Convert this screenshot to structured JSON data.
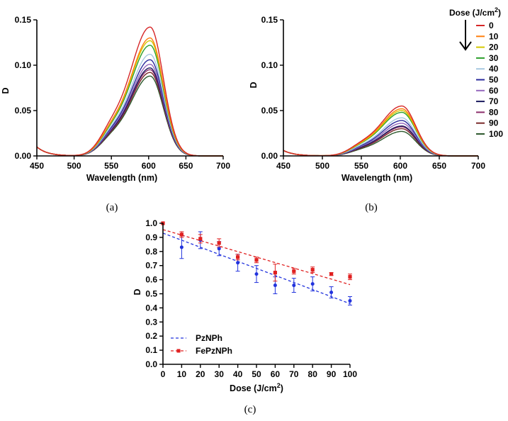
{
  "figure": {
    "panel_labels": [
      "(a)",
      "(b)",
      "(c)"
    ]
  },
  "chart_data": [
    {
      "panel": "a",
      "type": "line",
      "xlabel": "Wavelength (nm)",
      "ylabel": "D",
      "xlim": [
        450,
        700
      ],
      "ylim": [
        0,
        0.15
      ],
      "xticks": [
        450,
        500,
        550,
        600,
        650,
        700
      ],
      "xtick_labels": [
        "450",
        "500",
        "550",
        "600",
        "650",
        "700"
      ],
      "yticks": [
        0,
        0.05,
        0.1,
        0.15
      ],
      "ytick_labels": [
        "0.00",
        "0.05",
        "0.10",
        "0.15"
      ],
      "peak_wavelength": 602,
      "baseline_at_450": 0.01,
      "series": [
        {
          "name": "0",
          "color": "#d62728",
          "peak": 0.142
        },
        {
          "name": "10",
          "color": "#ff7f0e",
          "peak": 0.13
        },
        {
          "name": "20",
          "color": "#d4c800",
          "peak": 0.127
        },
        {
          "name": "30",
          "color": "#2ca02c",
          "peak": 0.122
        },
        {
          "name": "40",
          "color": "#a6c8e0",
          "peak": 0.112
        },
        {
          "name": "50",
          "color": "#2a2a9c",
          "peak": 0.106
        },
        {
          "name": "60",
          "color": "#9467bd",
          "peak": 0.101
        },
        {
          "name": "70",
          "color": "#1a1a5e",
          "peak": 0.097
        },
        {
          "name": "80",
          "color": "#8c2d6b",
          "peak": 0.095
        },
        {
          "name": "90",
          "color": "#7a2a2a",
          "peak": 0.092
        },
        {
          "name": "100",
          "color": "#2e5a2e",
          "peak": 0.088
        }
      ]
    },
    {
      "panel": "b",
      "type": "line",
      "xlabel": "Wavelength (nm)",
      "ylabel": "D",
      "xlim": [
        450,
        700
      ],
      "ylim": [
        0,
        0.15
      ],
      "xticks": [
        450,
        500,
        550,
        600,
        650,
        700
      ],
      "xtick_labels": [
        "450",
        "500",
        "550",
        "600",
        "650",
        "700"
      ],
      "yticks": [
        0,
        0.05,
        0.1,
        0.15
      ],
      "ytick_labels": [
        "0.00",
        "0.05",
        "0.10",
        "0.15"
      ],
      "peak_wavelength": 602,
      "baseline_at_450": 0.006,
      "series": [
        {
          "name": "0",
          "color": "#d62728",
          "peak": 0.055
        },
        {
          "name": "10",
          "color": "#ff7f0e",
          "peak": 0.052
        },
        {
          "name": "20",
          "color": "#d4c800",
          "peak": 0.05
        },
        {
          "name": "30",
          "color": "#2ca02c",
          "peak": 0.048
        },
        {
          "name": "40",
          "color": "#a6c8e0",
          "peak": 0.042
        },
        {
          "name": "50",
          "color": "#2a2a9c",
          "peak": 0.039
        },
        {
          "name": "60",
          "color": "#9467bd",
          "peak": 0.036
        },
        {
          "name": "70",
          "color": "#1a1a5e",
          "peak": 0.033
        },
        {
          "name": "80",
          "color": "#8c2d6b",
          "peak": 0.032
        },
        {
          "name": "90",
          "color": "#7a2a2a",
          "peak": 0.03
        },
        {
          "name": "100",
          "color": "#2e5a2e",
          "peak": 0.027
        }
      ],
      "legend": {
        "title_prefix": "Dose (J/cm",
        "title_sup": "2",
        "title_suffix": ")",
        "placement": "top-right",
        "entries": [
          "0",
          "10",
          "20",
          "30",
          "40",
          "50",
          "60",
          "70",
          "80",
          "90",
          "100"
        ]
      }
    },
    {
      "panel": "c",
      "type": "scatter",
      "xlabel_prefix": "Dose (J/cm",
      "xlabel_sup": "2",
      "xlabel_suffix": ")",
      "ylabel": "D",
      "xlim": [
        0,
        100
      ],
      "ylim": [
        0,
        1.0
      ],
      "xticks": [
        0,
        10,
        20,
        30,
        40,
        50,
        60,
        70,
        80,
        90,
        100
      ],
      "xtick_labels": [
        "0",
        "10",
        "20",
        "30",
        "40",
        "50",
        "60",
        "70",
        "80",
        "90",
        "100"
      ],
      "yticks": [
        0,
        0.1,
        0.2,
        0.3,
        0.4,
        0.5,
        0.6,
        0.7,
        0.8,
        0.9,
        1.0
      ],
      "ytick_labels": [
        "0.0",
        "0.1",
        "0.2",
        "0.3",
        "0.4",
        "0.5",
        "0.6",
        "0.7",
        "0.8",
        "0.9",
        "1.0"
      ],
      "x": [
        0,
        10,
        20,
        30,
        40,
        50,
        60,
        70,
        80,
        90,
        100
      ],
      "series": [
        {
          "name": "PzNPh",
          "color": "#2233dd",
          "marker": "circle",
          "values": [
            1.0,
            0.83,
            0.88,
            0.82,
            0.72,
            0.64,
            0.56,
            0.56,
            0.57,
            0.51,
            0.45
          ],
          "errors": [
            0.0,
            0.08,
            0.06,
            0.05,
            0.06,
            0.06,
            0.06,
            0.05,
            0.05,
            0.04,
            0.03
          ],
          "fit": [
            0.93,
            0.43
          ]
        },
        {
          "name": "FePzNPh",
          "color": "#e02020",
          "marker": "square",
          "values": [
            1.0,
            0.92,
            0.89,
            0.86,
            0.76,
            0.74,
            0.65,
            0.66,
            0.67,
            0.64,
            0.62
          ],
          "errors": [
            0.0,
            0.02,
            0.03,
            0.03,
            0.02,
            0.02,
            0.06,
            0.02,
            0.02,
            0.01,
            0.02
          ],
          "fit": [
            0.955,
            0.565
          ]
        }
      ],
      "legend": {
        "placement": "bottom-left",
        "entries": [
          "PzNPh",
          "FePzNPh"
        ]
      }
    }
  ]
}
